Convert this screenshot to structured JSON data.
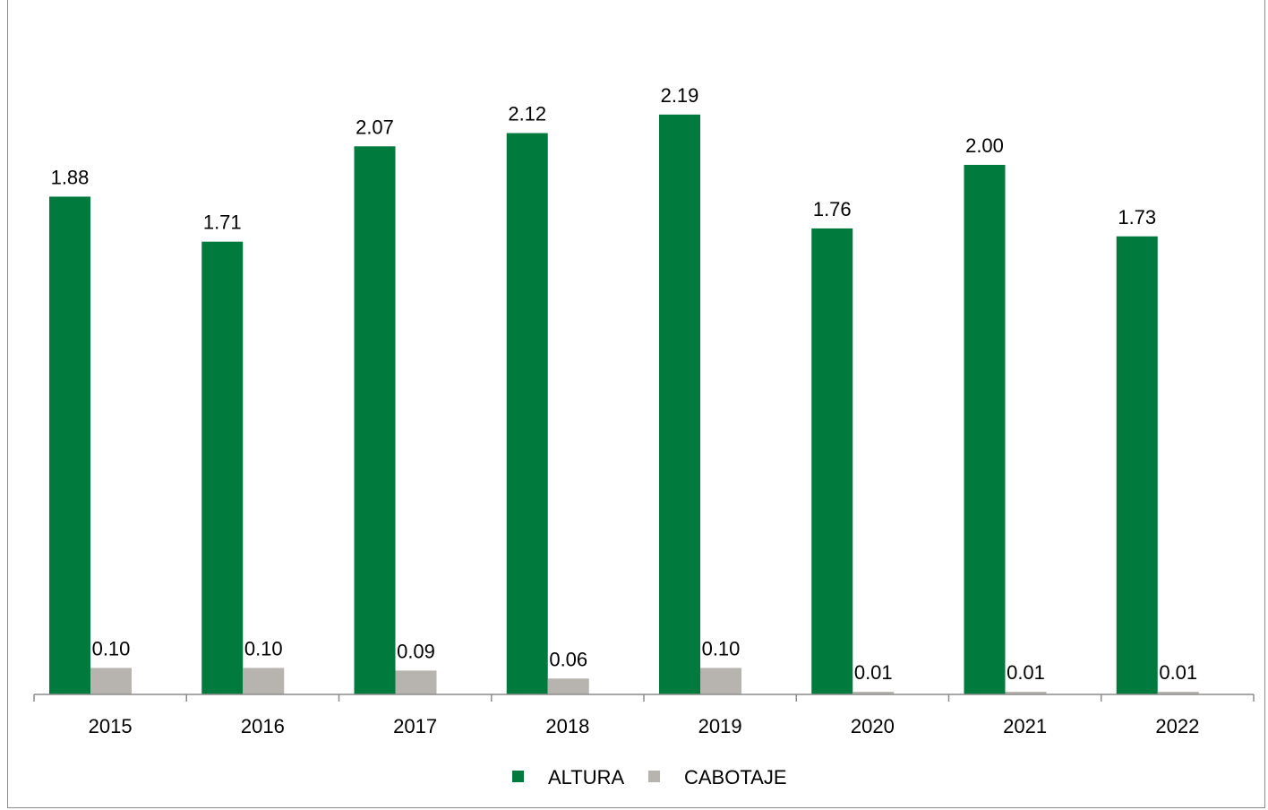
{
  "chart_data": {
    "type": "bar",
    "categories": [
      "2015",
      "2016",
      "2017",
      "2018",
      "2019",
      "2020",
      "2021",
      "2022"
    ],
    "series": [
      {
        "name": "ALTURA",
        "values": [
          1.88,
          1.71,
          2.07,
          2.12,
          2.19,
          1.76,
          2.0,
          1.73
        ],
        "color": "#007A3D",
        "labels": [
          "1.88",
          "1.71",
          "2.07",
          "2.12",
          "2.19",
          "1.76",
          "2.00",
          "1.73"
        ]
      },
      {
        "name": "CABOTAJE",
        "values": [
          0.1,
          0.1,
          0.09,
          0.06,
          0.1,
          0.01,
          0.01,
          0.01
        ],
        "color": "#B7B3AF",
        "labels": [
          "0.10",
          "0.10",
          "0.09",
          "0.06",
          "0.10",
          "0.01",
          "0.01",
          "0.01"
        ]
      }
    ],
    "title": "",
    "xlabel": "",
    "ylabel": "",
    "ylim": [
      0,
      2.3
    ],
    "grid": false,
    "legend_position": "bottom"
  }
}
